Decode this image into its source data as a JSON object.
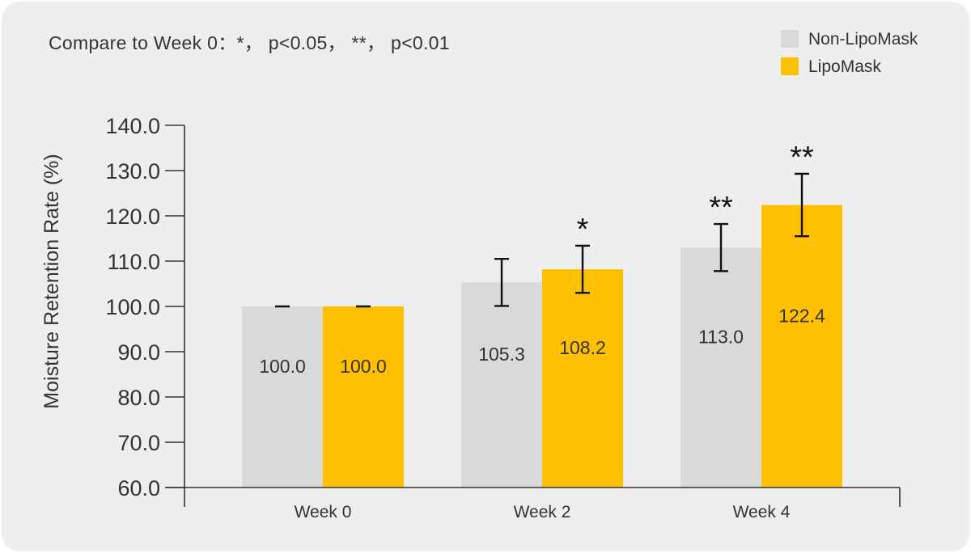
{
  "chart_data": {
    "type": "bar",
    "note": "Compare to Week 0：*， p<0.05， **， p<0.01",
    "ylabel": "Moisture Retention Rate (%)",
    "xlabel": "",
    "ylim": [
      60,
      140
    ],
    "yticks": [
      60,
      70,
      80,
      90,
      100,
      110,
      120,
      130,
      140
    ],
    "ytick_labels": [
      "60.0",
      "70.0",
      "80.0",
      "90.0",
      "100.0",
      "110.0",
      "120.0",
      "130.0",
      "140.0"
    ],
    "categories": [
      "Week 0",
      "Week 2",
      "Week 4"
    ],
    "legend_position": "top-right",
    "series": [
      {
        "name": "Non-LipoMask",
        "color": "#d9d9d9",
        "values": [
          100.0,
          105.3,
          113.0
        ],
        "labels": [
          "100.0",
          "105.3",
          "113.0"
        ],
        "error": [
          0,
          5.2,
          5.2
        ],
        "significance": [
          "",
          "",
          "**"
        ]
      },
      {
        "name": "LipoMask",
        "color": "#fec000",
        "values": [
          100.0,
          108.2,
          122.4
        ],
        "labels": [
          "100.0",
          "108.2",
          "122.4"
        ],
        "error": [
          0,
          5.2,
          6.9
        ],
        "significance": [
          "",
          "*",
          "**"
        ]
      }
    ]
  }
}
